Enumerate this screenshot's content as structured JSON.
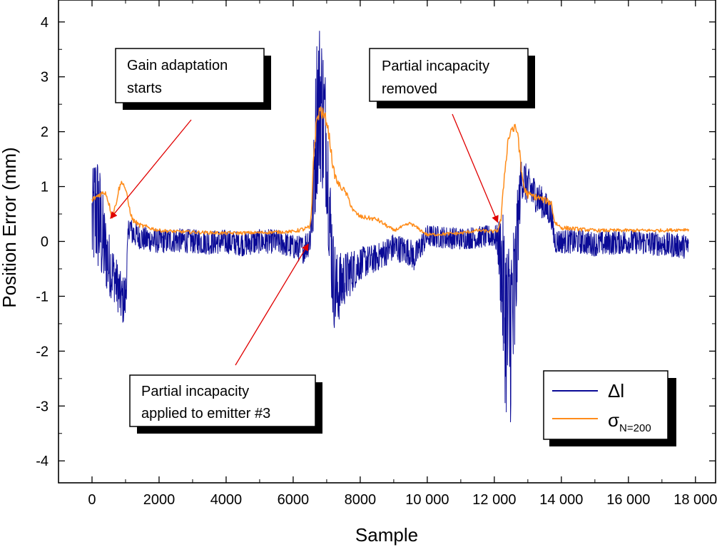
{
  "chart_data": {
    "type": "line",
    "xlabel": "Sample",
    "ylabel": "Position Error (mm)",
    "xlim": [
      -1000,
      18600
    ],
    "ylim": [
      -4.4,
      4.4
    ],
    "xticks": [
      0,
      2000,
      4000,
      6000,
      8000,
      10000,
      12000,
      14000,
      16000,
      18000
    ],
    "xtick_labels": [
      "0",
      "2000",
      "4000",
      "6000",
      "8000",
      "10 000",
      "12 000",
      "14 000",
      "16 000",
      "18 000"
    ],
    "yticks": [
      -4,
      -3,
      -2,
      -1,
      0,
      1,
      2,
      3,
      4
    ],
    "ytick_labels": [
      "-4",
      "-3",
      "-2",
      "-1",
      "0",
      "1",
      "2",
      "3",
      "4"
    ],
    "grid": false,
    "legend_position": "bottom-right",
    "series": [
      {
        "name": "ΔI",
        "legend_main": "Δl",
        "legend_sub": "",
        "color": "#0a0a96",
        "x": [
          0,
          100,
          200,
          300,
          400,
          500,
          600,
          700,
          800,
          900,
          1000,
          1100,
          1200,
          1500,
          2000,
          2500,
          3000,
          3500,
          4000,
          4500,
          5000,
          5500,
          6000,
          6300,
          6500,
          6600,
          6700,
          6800,
          6900,
          7000,
          7100,
          7200,
          7300,
          7500,
          8000,
          8500,
          9000,
          9500,
          9600,
          10000,
          11000,
          12000,
          12100,
          12200,
          12300,
          12400,
          12500,
          12600,
          12700,
          12800,
          13000,
          13300,
          13700,
          13800,
          14000,
          14500,
          15000,
          16000,
          17000,
          17800
        ],
        "values": [
          0.3,
          0.6,
          0.45,
          0.1,
          -0.2,
          -0.4,
          -0.55,
          -0.7,
          -0.9,
          -1.1,
          -1.0,
          0.3,
          0.15,
          0.05,
          0.0,
          0.02,
          0.0,
          -0.02,
          0.0,
          -0.05,
          0.0,
          0.0,
          -0.1,
          -0.15,
          0.05,
          0.8,
          2.3,
          2.6,
          2.2,
          1.7,
          0.3,
          -0.7,
          -0.9,
          -0.7,
          -0.4,
          -0.3,
          -0.1,
          -0.2,
          -0.3,
          0.1,
          0.05,
          0.1,
          0.0,
          -0.4,
          -1.2,
          -1.7,
          -1.5,
          -1.2,
          0.2,
          1.2,
          1.0,
          0.8,
          0.5,
          0.0,
          0.0,
          0.0,
          -0.05,
          0.0,
          -0.05,
          -0.1
        ],
        "noise_band": [
          0.9,
          1.1,
          1.1,
          0.9,
          0.7,
          0.6,
          0.5,
          0.45,
          0.45,
          0.45,
          0.45,
          0.25,
          0.22,
          0.22,
          0.22,
          0.22,
          0.22,
          0.22,
          0.22,
          0.22,
          0.22,
          0.22,
          0.22,
          0.25,
          0.3,
          0.8,
          1.5,
          1.5,
          1.4,
          1.2,
          1.0,
          0.9,
          0.7,
          0.5,
          0.3,
          0.25,
          0.25,
          0.25,
          0.25,
          0.2,
          0.2,
          0.2,
          0.3,
          1.0,
          1.6,
          1.8,
          1.8,
          1.6,
          0.8,
          0.4,
          0.35,
          0.3,
          0.25,
          0.22,
          0.22,
          0.22,
          0.22,
          0.22,
          0.22,
          0.22
        ]
      },
      {
        "name": "σN=200",
        "legend_main": "σ",
        "legend_sub": "N=200",
        "color": "#ff8c1a",
        "x": [
          0,
          200,
          400,
          500,
          600,
          700,
          800,
          900,
          1000,
          1100,
          1200,
          1400,
          1700,
          2000,
          2500,
          3000,
          4000,
          5000,
          6000,
          6500,
          6550,
          6600,
          6700,
          6800,
          6900,
          7000,
          7100,
          7200,
          7300,
          7400,
          7500,
          7600,
          7800,
          8000,
          8500,
          9000,
          9500,
          10000,
          11000,
          11500,
          12000,
          12100,
          12200,
          12300,
          12400,
          12500,
          12600,
          12700,
          12800,
          12900,
          13000,
          13300,
          13500,
          13700,
          13800,
          14000,
          15000,
          16000,
          17000,
          17800
        ],
        "values": [
          0.75,
          0.85,
          0.9,
          0.7,
          0.45,
          0.65,
          0.95,
          1.1,
          0.95,
          0.65,
          0.4,
          0.3,
          0.25,
          0.2,
          0.18,
          0.17,
          0.15,
          0.16,
          0.18,
          0.25,
          0.5,
          1.5,
          2.2,
          2.4,
          2.3,
          2.2,
          1.8,
          1.3,
          1.1,
          1.0,
          0.95,
          0.85,
          0.55,
          0.45,
          0.4,
          0.2,
          0.33,
          0.12,
          0.15,
          0.2,
          0.18,
          0.2,
          0.4,
          1.2,
          1.8,
          2.05,
          2.05,
          2.0,
          1.3,
          0.95,
          0.85,
          0.8,
          0.75,
          0.7,
          0.35,
          0.25,
          0.2,
          0.2,
          0.2,
          0.22
        ],
        "noise_band": [
          0.05,
          0.05,
          0.05,
          0.05,
          0.05,
          0.05,
          0.05,
          0.05,
          0.05,
          0.05,
          0.05,
          0.04,
          0.04,
          0.03,
          0.03,
          0.03,
          0.03,
          0.03,
          0.03,
          0.05,
          0.08,
          0.1,
          0.12,
          0.12,
          0.12,
          0.1,
          0.1,
          0.08,
          0.07,
          0.06,
          0.05,
          0.05,
          0.05,
          0.04,
          0.04,
          0.03,
          0.03,
          0.03,
          0.03,
          0.03,
          0.03,
          0.03,
          0.05,
          0.08,
          0.1,
          0.1,
          0.1,
          0.1,
          0.08,
          0.08,
          0.07,
          0.06,
          0.06,
          0.06,
          0.05,
          0.04,
          0.03,
          0.03,
          0.03,
          0.03
        ]
      }
    ],
    "annotations": [
      {
        "text": [
          "Gain adaptation",
          "starts"
        ],
        "arrow_to": {
          "x": 550,
          "y": 0.42
        }
      },
      {
        "text": [
          "Partial incapacity",
          "applied to emitter #3"
        ],
        "arrow_to": {
          "x": 6450,
          "y": -0.05
        }
      },
      {
        "text": [
          "Partial incapacity",
          "removed"
        ],
        "arrow_to": {
          "x": 12100,
          "y": 0.35
        }
      }
    ]
  }
}
